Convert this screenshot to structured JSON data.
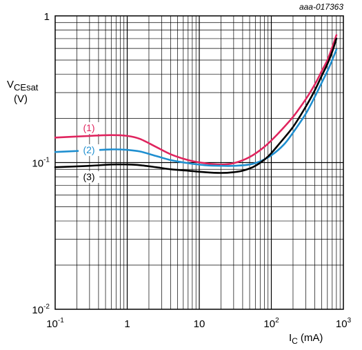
{
  "chart_data": {
    "type": "line",
    "doc_id": "aaa-017363",
    "x_scale": "log",
    "y_scale": "log",
    "xlim": [
      0.1,
      1000
    ],
    "ylim": [
      0.01,
      1
    ],
    "grid": true,
    "ylabel": {
      "main": "V",
      "sub": "CEsat",
      "unit": "(V)"
    },
    "xlabel": {
      "main": "I",
      "sub": "C",
      "unit": "(mA)"
    },
    "x_ticks": [
      {
        "value": 0.1,
        "base": "10",
        "exp": "-1"
      },
      {
        "value": 1,
        "base": "1",
        "exp": ""
      },
      {
        "value": 10,
        "base": "10",
        "exp": ""
      },
      {
        "value": 100,
        "base": "10",
        "exp": "2"
      },
      {
        "value": 1000,
        "base": "10",
        "exp": "3"
      }
    ],
    "y_ticks": [
      {
        "value": 1,
        "base": "1",
        "exp": ""
      },
      {
        "value": 0.1,
        "base": "10",
        "exp": "-1"
      },
      {
        "value": 0.01,
        "base": "10",
        "exp": "-2"
      }
    ],
    "series": [
      {
        "name": "(1)",
        "color": "#e0245e",
        "points": [
          [
            0.1,
            0.148
          ],
          [
            0.3,
            0.152
          ],
          [
            0.6,
            0.154
          ],
          [
            1.0,
            0.152
          ],
          [
            1.5,
            0.145
          ],
          [
            2.5,
            0.128
          ],
          [
            4,
            0.114
          ],
          [
            7,
            0.104
          ],
          [
            12,
            0.099
          ],
          [
            20,
            0.097
          ],
          [
            30,
            0.099
          ],
          [
            50,
            0.109
          ],
          [
            80,
            0.128
          ],
          [
            120,
            0.155
          ],
          [
            200,
            0.205
          ],
          [
            300,
            0.27
          ],
          [
            400,
            0.34
          ],
          [
            500,
            0.42
          ],
          [
            600,
            0.5
          ],
          [
            700,
            0.61
          ],
          [
            800,
            0.74
          ]
        ]
      },
      {
        "name": "(2)",
        "color": "#1f8fd0",
        "points": [
          [
            0.1,
            0.118
          ],
          [
            0.3,
            0.121
          ],
          [
            0.6,
            0.123
          ],
          [
            1.0,
            0.122
          ],
          [
            1.5,
            0.119
          ],
          [
            2.5,
            0.111
          ],
          [
            4,
            0.104
          ],
          [
            7,
            0.099
          ],
          [
            12,
            0.096
          ],
          [
            20,
            0.095
          ],
          [
            30,
            0.095
          ],
          [
            50,
            0.097
          ],
          [
            70,
            0.102
          ],
          [
            100,
            0.112
          ],
          [
            150,
            0.133
          ],
          [
            200,
            0.16
          ],
          [
            300,
            0.215
          ],
          [
            400,
            0.28
          ],
          [
            500,
            0.35
          ],
          [
            600,
            0.42
          ],
          [
            700,
            0.5
          ],
          [
            800,
            0.59
          ]
        ]
      },
      {
        "name": "(3)",
        "color": "#000000",
        "points": [
          [
            0.1,
            0.093
          ],
          [
            0.3,
            0.095
          ],
          [
            0.6,
            0.097
          ],
          [
            1.0,
            0.097
          ],
          [
            1.5,
            0.096
          ],
          [
            2.5,
            0.093
          ],
          [
            4,
            0.09
          ],
          [
            7,
            0.088
          ],
          [
            12,
            0.086
          ],
          [
            20,
            0.085
          ],
          [
            30,
            0.086
          ],
          [
            40,
            0.088
          ],
          [
            60,
            0.095
          ],
          [
            90,
            0.11
          ],
          [
            130,
            0.135
          ],
          [
            200,
            0.175
          ],
          [
            300,
            0.24
          ],
          [
            400,
            0.31
          ],
          [
            500,
            0.39
          ],
          [
            600,
            0.47
          ],
          [
            700,
            0.57
          ],
          [
            800,
            0.7
          ]
        ]
      }
    ]
  }
}
